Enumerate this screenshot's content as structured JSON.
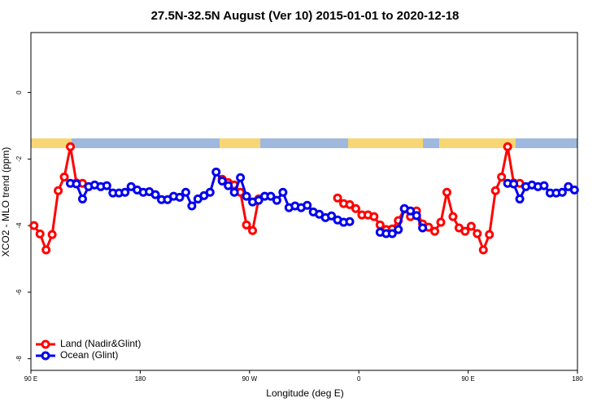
{
  "chart_data": {
    "type": "line",
    "title": "27.5N-32.5N August (Ver 10)   2015-01-01 to 2020-12-18",
    "x_label": "Longitude (deg E)",
    "y_label": "XCO2 - MLO trend (ppm)",
    "xlim": [
      90,
      540
    ],
    "ylim": [
      -8.35,
      1.8
    ],
    "xticks": [
      {
        "value": 90,
        "label": "90 E"
      },
      {
        "value": 180,
        "label": "180"
      },
      {
        "value": 270,
        "label": "90 W"
      },
      {
        "value": 360,
        "label": "0"
      },
      {
        "value": 450,
        "label": "90 E"
      },
      {
        "value": 540,
        "label": "180"
      }
    ],
    "yticks": [
      0,
      -2,
      -4,
      -6,
      -8
    ],
    "legend": "bottom-left",
    "x": [
      92.5,
      97.5,
      102.5,
      107.5,
      112.5,
      117.5,
      122.5,
      127.5,
      132.5,
      137.5,
      142.5,
      147.5,
      152.5,
      157.5,
      162.5,
      167.5,
      172.5,
      177.5,
      182.5,
      187.5,
      192.5,
      197.5,
      202.5,
      207.5,
      212.5,
      217.5,
      222.5,
      227.5,
      232.5,
      237.5,
      242.5,
      247.5,
      252.5,
      257.5,
      262.5,
      267.5,
      272.5,
      277.5,
      282.5,
      287.5,
      292.5,
      297.5,
      302.5,
      307.5,
      312.5,
      317.5,
      322.5,
      327.5,
      332.5,
      337.5,
      342.5,
      347.5,
      352.5,
      357.5,
      362.5,
      367.5,
      372.5,
      377.5,
      382.5,
      387.5,
      392.5,
      397.5,
      402.5,
      407.5,
      412.5,
      417.5,
      422.5,
      427.5,
      432.5,
      437.5,
      442.5,
      447.5,
      452.5,
      457.5,
      462.5,
      467.5,
      472.5,
      477.5,
      482.5,
      487.5,
      492.5,
      497.5,
      502.5,
      507.5,
      512.5,
      517.5,
      522.5,
      527.5,
      532.5,
      537.5
    ],
    "series": [
      {
        "name": "Land (Nadir&Glint)",
        "color": "#ff0000",
        "values": [
          -4.0,
          -4.25,
          -4.73,
          -4.27,
          -2.95,
          -2.54,
          -1.63,
          -2.72,
          -2.73,
          null,
          null,
          null,
          null,
          null,
          null,
          null,
          null,
          null,
          null,
          null,
          null,
          null,
          null,
          null,
          null,
          null,
          null,
          null,
          null,
          null,
          null,
          -2.61,
          -2.71,
          -2.78,
          -3.0,
          -3.98,
          -4.15,
          -3.2,
          null,
          null,
          null,
          null,
          null,
          null,
          null,
          null,
          null,
          null,
          null,
          null,
          -3.17,
          -3.34,
          -3.37,
          -3.49,
          -3.68,
          -3.68,
          -3.73,
          -3.98,
          -4.12,
          -4.1,
          -3.85,
          -3.5,
          -3.73,
          -3.56,
          -3.95,
          -4.05,
          -4.17,
          -3.9,
          -3.0,
          -3.73,
          -4.07,
          -4.17,
          -4.02,
          -4.24,
          -4.73,
          -4.27,
          -2.95,
          -2.54,
          -1.63,
          -2.72,
          -2.73,
          null,
          null,
          null,
          null,
          null,
          null,
          null,
          null,
          null
        ]
      },
      {
        "name": "Ocean (Glint)",
        "color": "#0000ee",
        "values": [
          null,
          null,
          null,
          null,
          null,
          null,
          -2.73,
          -2.75,
          -3.2,
          -2.83,
          -2.78,
          -2.83,
          -2.8,
          -3.02,
          -3.02,
          -3.0,
          -2.83,
          -2.93,
          -3.0,
          -2.98,
          -3.07,
          -3.22,
          -3.22,
          -3.12,
          -3.15,
          -3.0,
          -3.41,
          -3.2,
          -3.1,
          -3.0,
          -2.39,
          -2.66,
          -2.8,
          -3.0,
          -2.56,
          -3.12,
          -3.29,
          -3.24,
          -3.12,
          -3.12,
          -3.24,
          -3.0,
          -3.46,
          -3.41,
          -3.46,
          -3.39,
          -3.59,
          -3.66,
          -3.76,
          -3.71,
          -3.83,
          -3.9,
          -3.88,
          null,
          null,
          null,
          null,
          -4.2,
          -4.24,
          -4.24,
          -4.12,
          -3.49,
          -3.56,
          -3.7,
          -4.07,
          null,
          null,
          null,
          null,
          null,
          null,
          null,
          null,
          null,
          null,
          null,
          null,
          null,
          -2.73,
          -2.75,
          -3.2,
          -2.83,
          -2.78,
          -2.83,
          -2.8,
          -3.02,
          -3.02,
          -3.0,
          -2.83,
          -2.93
        ]
      }
    ]
  }
}
